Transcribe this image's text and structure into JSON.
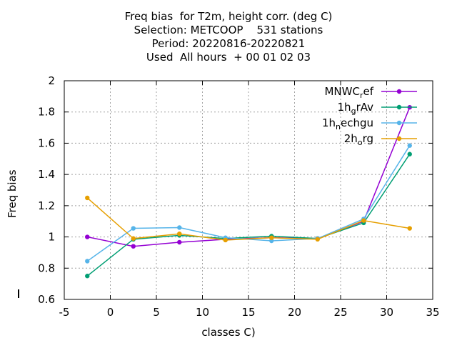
{
  "title_lines": [
    "Freq bias  for T2m, height corr. (deg C)",
    "Selection: METCOOP    531 stations",
    "Period: 20220816-20220821",
    "Used  All hours  + 00 01 02 03"
  ],
  "chart_data": {
    "type": "line",
    "title": "Freq bias  for T2m, height corr. (deg C)",
    "xlabel": "classes C)",
    "ylabel": "Freq bias",
    "xlim": [
      -5,
      35
    ],
    "ylim": [
      0.6,
      2
    ],
    "xticks": [
      -5,
      0,
      5,
      10,
      15,
      20,
      25,
      30,
      35
    ],
    "yticks": [
      0.6,
      0.8,
      1,
      1.2,
      1.4,
      1.6,
      1.8,
      2
    ],
    "ytick_labels": [
      "0.6",
      "0.8",
      "1",
      "1.2",
      "1.4",
      "1.6",
      "1.8",
      "2"
    ],
    "grid": true,
    "legend_position": "top-right",
    "x": [
      -2.5,
      2.5,
      7.5,
      12.5,
      17.5,
      22.5,
      27.5,
      32.5
    ],
    "series": [
      {
        "name": "MNWC",
        "subscript": "r",
        "suffix": "ef",
        "color": "#9400d3",
        "values": [
          1.0,
          0.94,
          0.966,
          0.985,
          0.995,
          0.99,
          1.1,
          1.83
        ]
      },
      {
        "name": "1h",
        "subscript": "g",
        "suffix": "rAv",
        "color": "#009e73",
        "values": [
          0.75,
          0.985,
          1.01,
          0.99,
          1.005,
          0.99,
          1.09,
          1.53
        ]
      },
      {
        "name": "1h",
        "subscript": "n",
        "suffix": "echgu",
        "color": "#56b4e9",
        "values": [
          0.845,
          1.055,
          1.06,
          0.995,
          0.975,
          0.99,
          1.115,
          1.585
        ]
      },
      {
        "name": "2h",
        "subscript": "o",
        "suffix": "rg",
        "color": "#e69f00",
        "values": [
          1.25,
          0.99,
          1.02,
          0.98,
          0.995,
          0.985,
          1.105,
          1.055
        ]
      }
    ]
  }
}
